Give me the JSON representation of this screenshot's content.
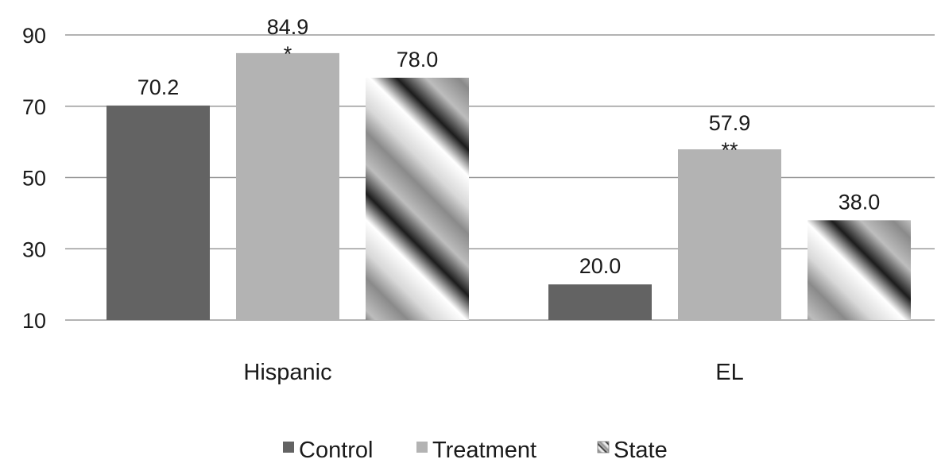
{
  "chart_data": {
    "type": "bar",
    "title": "",
    "xlabel": "",
    "ylabel": "",
    "categories": [
      "Hispanic",
      "EL"
    ],
    "series": [
      {
        "name": "Control",
        "values": [
          70.2,
          20.0
        ],
        "labels": [
          "70.2",
          "20.0"
        ],
        "markers": [
          "",
          ""
        ],
        "color": "#636363",
        "pattern": "solid"
      },
      {
        "name": "Treatment",
        "values": [
          84.9,
          57.9
        ],
        "labels": [
          "84.9",
          "57.9"
        ],
        "markers": [
          "*",
          "**"
        ],
        "color": "#b3b3b3",
        "pattern": "solid"
      },
      {
        "name": "State",
        "values": [
          78.0,
          38.0
        ],
        "labels": [
          "78.0",
          "38.0"
        ],
        "markers": [
          "",
          ""
        ],
        "color": "#8c8c8c",
        "pattern": "diagonal-gradient"
      }
    ],
    "ylim": [
      10,
      90
    ],
    "yticks": [
      10,
      30,
      50,
      70,
      90
    ],
    "ytick_labels": [
      "10",
      "30",
      "50",
      "70",
      "90"
    ],
    "grid": true,
    "grid_color": "#9a9a9a",
    "legend_position": "bottom"
  }
}
